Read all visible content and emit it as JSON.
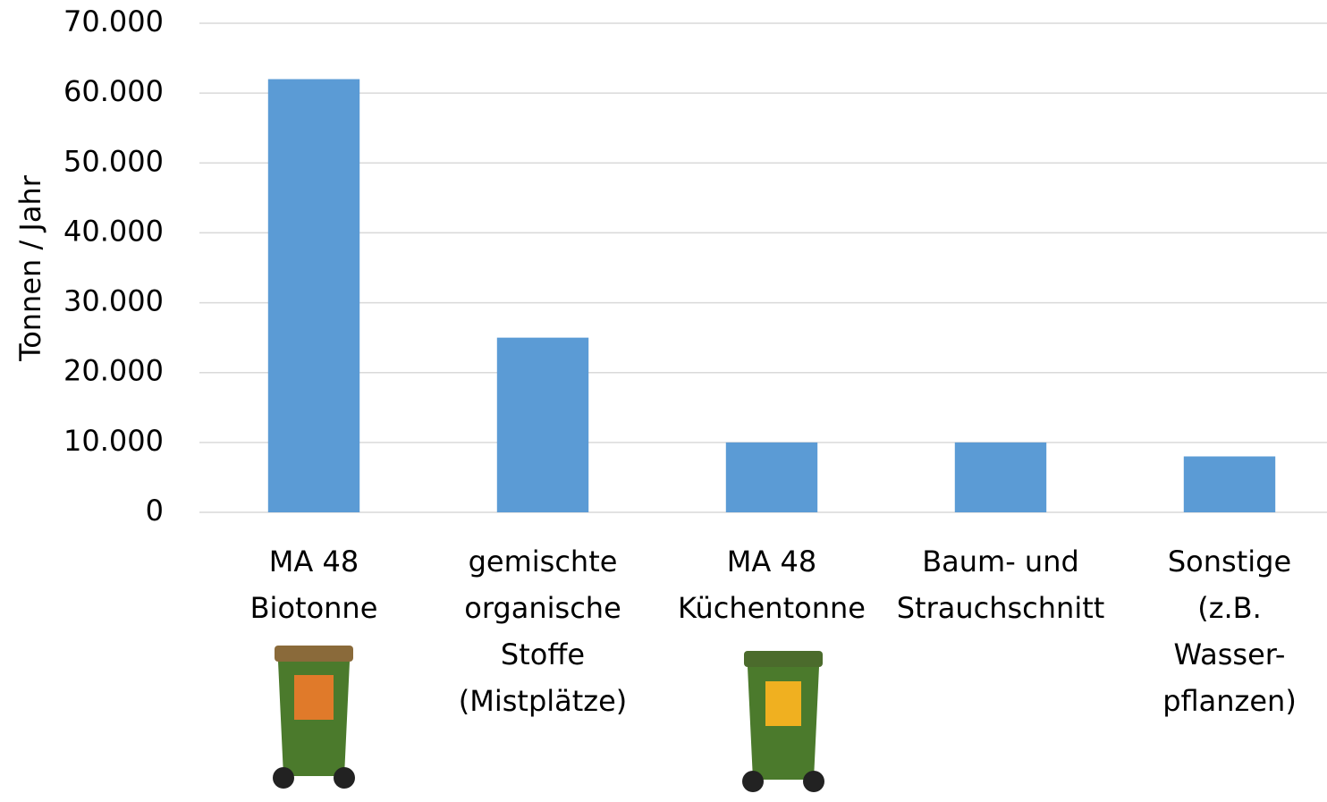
{
  "chart_data": {
    "type": "bar",
    "y_label": "Tonnen / Jahr",
    "categories": [
      [
        "MA 48",
        "Biotonne"
      ],
      [
        "gemischte",
        "organische",
        "Stoffe",
        "(Mistplätze)"
      ],
      [
        "MA 48",
        "Küchentonne"
      ],
      [
        "Baum- und",
        "Strauchschnitt"
      ],
      [
        "Sonstige",
        "(z.B.",
        "Wasser-",
        "pflanzen)"
      ]
    ],
    "values": [
      62000,
      25000,
      10000,
      10000,
      8000
    ],
    "color": "#5b9bd5",
    "ylim": [
      0,
      70000
    ],
    "yticks": [
      {
        "value": 0,
        "label": "0"
      },
      {
        "value": 10000,
        "label": "10.000"
      },
      {
        "value": 20000,
        "label": "20.000"
      },
      {
        "value": 30000,
        "label": "30.000"
      },
      {
        "value": 40000,
        "label": "40.000"
      },
      {
        "value": 50000,
        "label": "50.000"
      },
      {
        "value": 60000,
        "label": "60.000"
      },
      {
        "value": 70000,
        "label": "70.000"
      }
    ],
    "grid": true
  }
}
